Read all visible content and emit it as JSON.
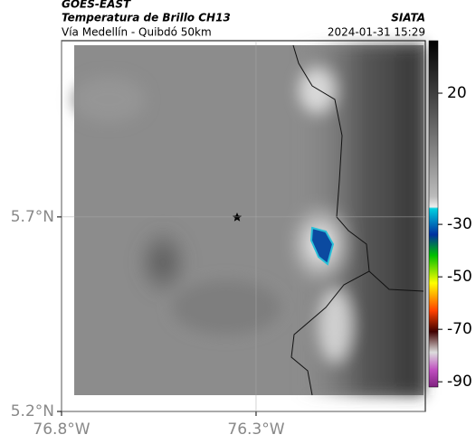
{
  "header": {
    "satellite": "GOES-EAST",
    "product": "Temperatura de Brillo CH13",
    "source": "SIATA",
    "route": "Vía Medellín - Quibdó 50km",
    "timestamp": "2024-01-31 15:29"
  },
  "map": {
    "xlim": [
      -76.8,
      -75.865
    ],
    "ylim": [
      5.2,
      6.153
    ],
    "xticks": [
      {
        "value": -76.8,
        "label": "76.8°W"
      },
      {
        "value": -76.3,
        "label": "76.3°W"
      }
    ],
    "yticks": [
      {
        "value": 5.7,
        "label": "5.7°N"
      },
      {
        "value": 5.2,
        "label": "5.2°N"
      }
    ]
  },
  "colorbar": {
    "lim": [
      40,
      -92
    ],
    "ticks": [
      20,
      -30,
      -50,
      -70,
      -90
    ]
  }
}
